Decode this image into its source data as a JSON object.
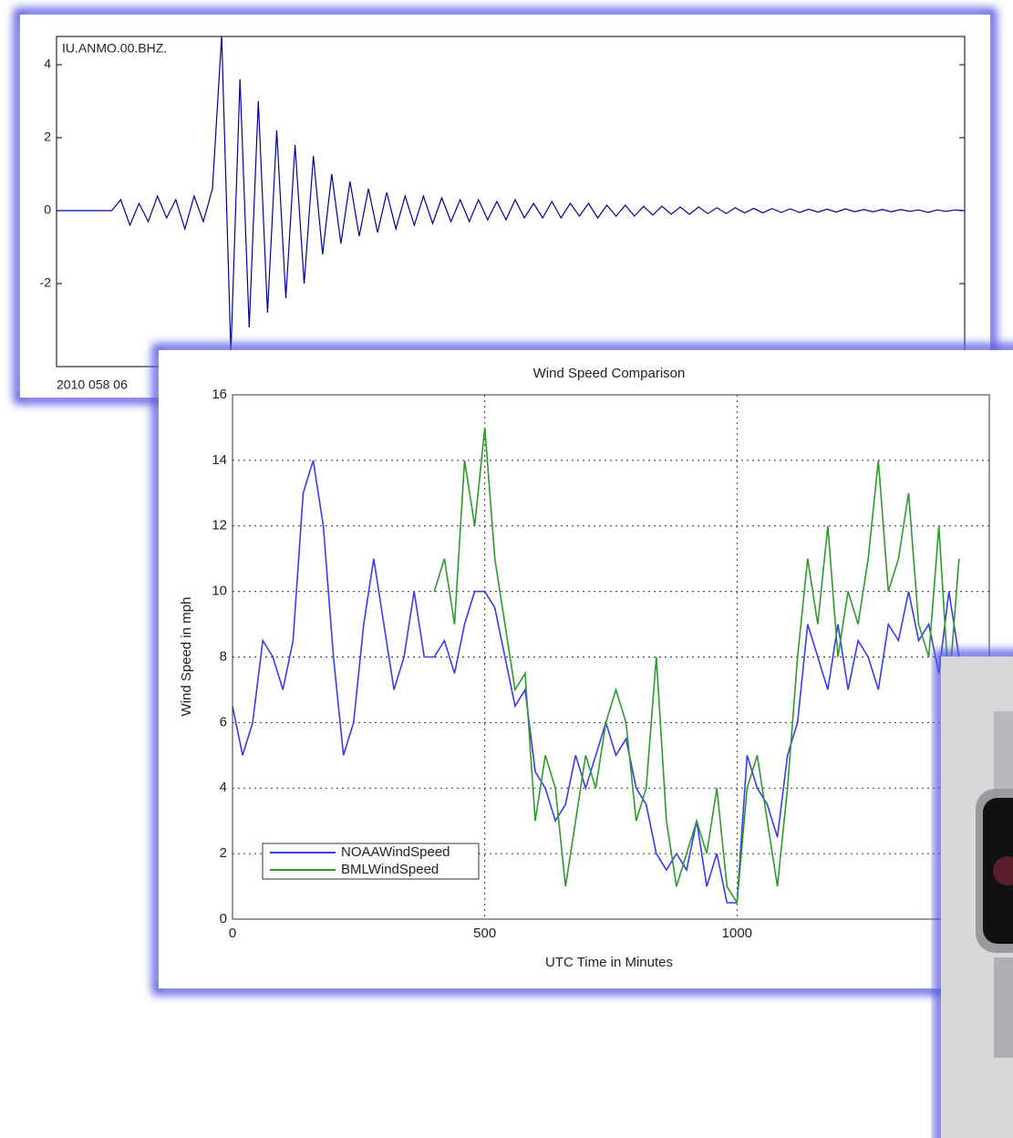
{
  "chart_data": [
    {
      "type": "line",
      "title": "IU.ANMO.00.BHZ.",
      "xlabel": "2010 058 06",
      "color": "#00009a",
      "ylim": [
        -4.275,
        4.775
      ],
      "yticks": [
        4,
        2,
        0,
        -2
      ],
      "values": [
        0,
        0,
        0,
        0,
        0,
        0,
        0,
        0.3,
        -0.4,
        0.2,
        -0.3,
        0.4,
        -0.2,
        0.3,
        -0.5,
        0.4,
        -0.3,
        0.6,
        4.8,
        -3.9,
        3.6,
        -3.2,
        3,
        -2.8,
        2.2,
        -2.4,
        1.8,
        -2,
        1.5,
        -1.2,
        1,
        -0.9,
        0.8,
        -0.7,
        0.6,
        -0.6,
        0.5,
        -0.5,
        0.4,
        -0.4,
        0.4,
        -0.35,
        0.35,
        -0.3,
        0.3,
        -0.3,
        0.3,
        -0.25,
        0.25,
        -0.25,
        0.3,
        -0.2,
        0.2,
        -0.2,
        0.25,
        -0.2,
        0.2,
        -0.15,
        0.2,
        -0.2,
        0.15,
        -0.15,
        0.15,
        -0.15,
        0.12,
        -0.12,
        0.12,
        -0.1,
        0.1,
        -0.1,
        0.1,
        -0.08,
        0.08,
        -0.08,
        0.08,
        -0.06,
        0.06,
        -0.06,
        0.06,
        -0.05,
        0.05,
        -0.05,
        0.04,
        -0.04,
        0.04,
        -0.04,
        0.05,
        -0.03,
        0.03,
        -0.03,
        0.03,
        -0.03,
        0.03,
        -0.02,
        0.02,
        -0.05,
        0.02,
        -0.02,
        0.02,
        0
      ]
    },
    {
      "type": "line",
      "title": "Wind Speed Comparison",
      "xlabel": "UTC Time in Minutes",
      "ylabel": "Wind Speed in mph",
      "xlim": [
        0,
        1500
      ],
      "xticks": [
        0,
        500,
        1000
      ],
      "ylim": [
        0,
        16
      ],
      "yticks": [
        0,
        2,
        4,
        6,
        8,
        10,
        12,
        14,
        16
      ],
      "grid": true,
      "legend": "lower left",
      "x": [
        0,
        20,
        40,
        60,
        80,
        100,
        120,
        140,
        160,
        180,
        200,
        220,
        240,
        260,
        280,
        300,
        320,
        340,
        360,
        380,
        400,
        420,
        440,
        460,
        480,
        500,
        520,
        540,
        560,
        580,
        600,
        620,
        640,
        660,
        680,
        700,
        720,
        740,
        760,
        780,
        800,
        820,
        840,
        860,
        880,
        900,
        920,
        940,
        960,
        980,
        1000,
        1020,
        1040,
        1060,
        1080,
        1100,
        1120,
        1140,
        1160,
        1180,
        1200,
        1220,
        1240,
        1260,
        1280,
        1300,
        1320,
        1340,
        1360,
        1380,
        1400,
        1420,
        1440
      ],
      "series": [
        {
          "name": "NOAAWindSpeed",
          "color": "#3a3af0",
          "values": [
            6.5,
            5,
            6,
            8.5,
            8,
            7,
            8.5,
            13,
            14,
            12,
            8,
            5,
            6,
            9,
            11,
            9,
            7,
            8,
            10,
            8,
            8,
            8.5,
            7.5,
            9,
            10,
            10,
            9.5,
            8,
            6.5,
            7,
            4.5,
            4,
            3,
            3.5,
            5,
            4,
            5,
            6,
            5,
            5.5,
            4,
            3.5,
            2,
            1.5,
            2,
            1.5,
            3,
            1,
            2,
            0.5,
            0.5,
            5,
            4,
            3.5,
            2.5,
            5,
            6,
            9,
            8,
            7,
            9,
            7,
            8.5,
            8,
            7,
            9,
            8.5,
            10,
            8.5,
            9,
            7.5,
            10,
            8
          ]
        },
        {
          "name": "BMLWindSpeed",
          "color": "#2e9a2e",
          "values": [
            null,
            null,
            null,
            null,
            null,
            null,
            null,
            null,
            null,
            null,
            null,
            null,
            null,
            null,
            null,
            null,
            null,
            null,
            null,
            null,
            10,
            11,
            9,
            14,
            12,
            15,
            11,
            9,
            7,
            7.5,
            3,
            5,
            4,
            1,
            3,
            5,
            4,
            6,
            7,
            6,
            3,
            4,
            8,
            3,
            1,
            2,
            3,
            2,
            4,
            1,
            0.5,
            4,
            5,
            3,
            1,
            4,
            8,
            11,
            9,
            12,
            8,
            10,
            9,
            11,
            14,
            10,
            11,
            13,
            9,
            8,
            12,
            7,
            11
          ]
        }
      ]
    }
  ]
}
